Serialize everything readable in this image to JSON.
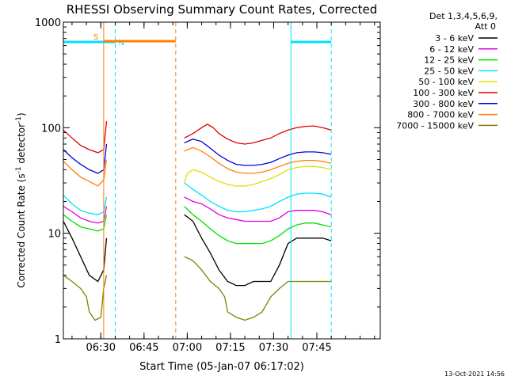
{
  "chart_data": {
    "type": "line",
    "title": "RHESSI Observing Summary Count Rates, Corrected",
    "xlabel": "Start Time (05-Jan-07 06:17:02)",
    "ylabel_pre": "Corrected Count Rate (s",
    "ylabel_sup1": "-1",
    "ylabel_mid": " detector",
    "ylabel_sup2": "-1",
    "ylabel_post": ")",
    "yscale": "log",
    "ylim": [
      1,
      1000
    ],
    "xlim_min": [
      377,
      487
    ],
    "x_ticks": [
      {
        "min": 390,
        "label": "06:30"
      },
      {
        "min": 405,
        "label": "06:45"
      },
      {
        "min": 420,
        "label": "07:00"
      },
      {
        "min": 435,
        "label": "07:15"
      },
      {
        "min": 450,
        "label": "07:30"
      },
      {
        "min": 465,
        "label": "07:45"
      }
    ],
    "y_ticks": [
      {
        "v": 1,
        "label": "1"
      },
      {
        "v": 10,
        "label": "10"
      },
      {
        "v": 100,
        "label": "100"
      },
      {
        "v": 1000,
        "label": "1000"
      }
    ],
    "legend": {
      "header1": "Det 1,3,4,5,6,9,",
      "header2": "Att 0",
      "placement": "right"
    },
    "series": [
      {
        "name": "3 - 6 keV",
        "color": "#000000",
        "segments": [
          [
            [
              377,
              13
            ],
            [
              380,
              9
            ],
            [
              383,
              6
            ],
            [
              386,
              4
            ],
            [
              389,
              3.5
            ],
            [
              391,
              4.5
            ],
            [
              392,
              9
            ]
          ],
          [
            [
              419,
              15
            ],
            [
              422,
              13
            ],
            [
              425,
              9
            ],
            [
              428,
              6.5
            ],
            [
              431,
              4.5
            ],
            [
              434,
              3.5
            ],
            [
              437,
              3.2
            ],
            [
              440,
              3.2
            ],
            [
              443,
              3.5
            ],
            [
              446,
              3.5
            ],
            [
              449,
              3.5
            ],
            [
              452,
              5
            ],
            [
              455,
              8
            ],
            [
              458,
              9
            ],
            [
              461,
              9
            ],
            [
              464,
              9
            ],
            [
              467,
              9
            ],
            [
              470,
              8.5
            ]
          ]
        ]
      },
      {
        "name": "6 - 12 keV",
        "color": "#e000e0",
        "segments": [
          [
            [
              377,
              18
            ],
            [
              380,
              16
            ],
            [
              383,
              14
            ],
            [
              386,
              13
            ],
            [
              389,
              12.5
            ],
            [
              391,
              13
            ],
            [
              392,
              18
            ]
          ],
          [
            [
              419,
              22
            ],
            [
              422,
              20
            ],
            [
              425,
              19
            ],
            [
              428,
              17
            ],
            [
              431,
              15
            ],
            [
              434,
              14
            ],
            [
              437,
              13.5
            ],
            [
              440,
              13
            ],
            [
              443,
              13
            ],
            [
              446,
              13
            ],
            [
              449,
              13
            ],
            [
              452,
              14
            ],
            [
              455,
              16
            ],
            [
              458,
              16.5
            ],
            [
              461,
              16.5
            ],
            [
              464,
              16.5
            ],
            [
              467,
              16
            ],
            [
              470,
              15
            ]
          ]
        ]
      },
      {
        "name": "12 - 25 keV",
        "color": "#00e000",
        "segments": [
          [
            [
              377,
              15
            ],
            [
              380,
              13
            ],
            [
              383,
              11.5
            ],
            [
              386,
              11
            ],
            [
              389,
              10.5
            ],
            [
              391,
              11
            ],
            [
              392,
              15
            ]
          ],
          [
            [
              419,
              18
            ],
            [
              422,
              15
            ],
            [
              425,
              13
            ],
            [
              428,
              11
            ],
            [
              431,
              9.5
            ],
            [
              434,
              8.5
            ],
            [
              437,
              8
            ],
            [
              440,
              8
            ],
            [
              443,
              8
            ],
            [
              446,
              8
            ],
            [
              449,
              8.5
            ],
            [
              452,
              9.5
            ],
            [
              455,
              11
            ],
            [
              458,
              12
            ],
            [
              461,
              12.5
            ],
            [
              464,
              12.5
            ],
            [
              467,
              12
            ],
            [
              470,
              11.5
            ]
          ]
        ]
      },
      {
        "name": "25 - 50 keV",
        "color": "#00e0ff",
        "segments": [
          [
            [
              377,
              23
            ],
            [
              380,
              19
            ],
            [
              383,
              16.5
            ],
            [
              386,
              15.5
            ],
            [
              389,
              15
            ],
            [
              391,
              16
            ],
            [
              392,
              22
            ]
          ],
          [
            [
              419,
              30
            ],
            [
              422,
              26
            ],
            [
              425,
              23
            ],
            [
              428,
              20
            ],
            [
              431,
              18
            ],
            [
              434,
              16.5
            ],
            [
              437,
              16
            ],
            [
              440,
              16
            ],
            [
              443,
              16.5
            ],
            [
              446,
              17
            ],
            [
              449,
              18
            ],
            [
              452,
              20
            ],
            [
              455,
              22
            ],
            [
              458,
              23.5
            ],
            [
              461,
              24
            ],
            [
              464,
              24
            ],
            [
              467,
              23.5
            ],
            [
              470,
              22
            ]
          ]
        ]
      },
      {
        "name": "50 - 100 keV",
        "color": "#e0e000",
        "segments": [
          [
            [
              419,
              30
            ],
            [
              420,
              37
            ],
            [
              422,
              40
            ],
            [
              425,
              38
            ],
            [
              428,
              34
            ],
            [
              431,
              31
            ],
            [
              434,
              29
            ],
            [
              437,
              28
            ],
            [
              440,
              28
            ],
            [
              443,
              29
            ],
            [
              446,
              31
            ],
            [
              449,
              33
            ],
            [
              452,
              36
            ],
            [
              455,
              40
            ],
            [
              458,
              42
            ],
            [
              461,
              43
            ],
            [
              464,
              43
            ],
            [
              467,
              42
            ],
            [
              470,
              40
            ]
          ]
        ]
      },
      {
        "name": "100 - 300 keV",
        "color": "#e00000",
        "segments": [
          [
            [
              377,
              95
            ],
            [
              380,
              80
            ],
            [
              383,
              68
            ],
            [
              386,
              62
            ],
            [
              389,
              58
            ],
            [
              391,
              62
            ],
            [
              392,
              115
            ]
          ],
          [
            [
              419,
              80
            ],
            [
              422,
              88
            ],
            [
              425,
              100
            ],
            [
              427,
              108
            ],
            [
              429,
              100
            ],
            [
              431,
              88
            ],
            [
              434,
              78
            ],
            [
              437,
              72
            ],
            [
              440,
              70
            ],
            [
              443,
              72
            ],
            [
              446,
              76
            ],
            [
              449,
              80
            ],
            [
              452,
              88
            ],
            [
              455,
              95
            ],
            [
              458,
              100
            ],
            [
              461,
              103
            ],
            [
              464,
              104
            ],
            [
              467,
              100
            ],
            [
              470,
              95
            ]
          ]
        ]
      },
      {
        "name": "300 - 800 keV",
        "color": "#0000e0",
        "segments": [
          [
            [
              377,
              62
            ],
            [
              380,
              52
            ],
            [
              383,
              45
            ],
            [
              386,
              40
            ],
            [
              389,
              37
            ],
            [
              391,
              40
            ],
            [
              392,
              70
            ]
          ],
          [
            [
              419,
              72
            ],
            [
              422,
              78
            ],
            [
              425,
              74
            ],
            [
              428,
              64
            ],
            [
              431,
              55
            ],
            [
              434,
              49
            ],
            [
              437,
              45
            ],
            [
              440,
              44
            ],
            [
              443,
              44
            ],
            [
              446,
              45
            ],
            [
              449,
              47
            ],
            [
              452,
              51
            ],
            [
              455,
              55
            ],
            [
              458,
              58
            ],
            [
              461,
              59
            ],
            [
              464,
              59
            ],
            [
              467,
              58
            ],
            [
              470,
              56
            ]
          ]
        ]
      },
      {
        "name": "800 - 7000 keV",
        "color": "#ff8000",
        "segments": [
          [
            [
              377,
              48
            ],
            [
              380,
              40
            ],
            [
              383,
              34
            ],
            [
              386,
              31
            ],
            [
              389,
              28
            ],
            [
              391,
              32
            ],
            [
              392,
              50
            ]
          ],
          [
            [
              419,
              60
            ],
            [
              422,
              65
            ],
            [
              425,
              60
            ],
            [
              428,
              53
            ],
            [
              431,
              46
            ],
            [
              434,
              41
            ],
            [
              437,
              38
            ],
            [
              440,
              37
            ],
            [
              443,
              37
            ],
            [
              446,
              38
            ],
            [
              449,
              40
            ],
            [
              452,
              43
            ],
            [
              455,
              46
            ],
            [
              458,
              48
            ],
            [
              461,
              49
            ],
            [
              464,
              49
            ],
            [
              467,
              48
            ],
            [
              470,
              46
            ]
          ]
        ]
      },
      {
        "name": "7000 - 15000 keV",
        "color": "#808000",
        "segments": [
          [
            [
              377,
              4
            ],
            [
              380,
              3.5
            ],
            [
              383,
              3
            ],
            [
              385,
              2.5
            ],
            [
              386,
              1.8
            ],
            [
              388,
              1.5
            ],
            [
              390,
              1.6
            ],
            [
              391,
              3
            ],
            [
              392,
              4
            ]
          ],
          [
            [
              419,
              6
            ],
            [
              422,
              5.5
            ],
            [
              425,
              4.5
            ],
            [
              428,
              3.5
            ],
            [
              431,
              3
            ],
            [
              433,
              2.5
            ],
            [
              434,
              1.8
            ],
            [
              437,
              1.6
            ],
            [
              440,
              1.5
            ],
            [
              443,
              1.6
            ],
            [
              446,
              1.8
            ],
            [
              449,
              2.5
            ],
            [
              452,
              3
            ],
            [
              455,
              3.5
            ],
            [
              458,
              3.5
            ],
            [
              461,
              3.5
            ],
            [
              464,
              3.5
            ],
            [
              467,
              3.5
            ],
            [
              470,
              3.5
            ]
          ]
        ]
      }
    ],
    "markers": {
      "saa": {
        "label": "S",
        "x_start": 391,
        "x_end": 416,
        "value": 660,
        "color": "#ff8000"
      },
      "night1": {
        "label": "N",
        "x_start": 377,
        "x_end": 395,
        "value": 650,
        "color": "#00e0ff"
      },
      "night2": {
        "label": "",
        "x_start": 456,
        "x_end": 470,
        "value": 650,
        "color": "#00e0ff"
      },
      "orange_lines": [
        {
          "x": 391,
          "style": "solid"
        },
        {
          "x": 416,
          "style": "dashed"
        }
      ],
      "cyan_lines": [
        {
          "x": 377,
          "style": "solid"
        },
        {
          "x": 395,
          "style": "dashed"
        },
        {
          "x": 456,
          "style": "solid"
        },
        {
          "x": 470,
          "style": "dashed"
        }
      ]
    }
  },
  "footer": {
    "timestamp": "13-Oct-2021 14:56"
  }
}
